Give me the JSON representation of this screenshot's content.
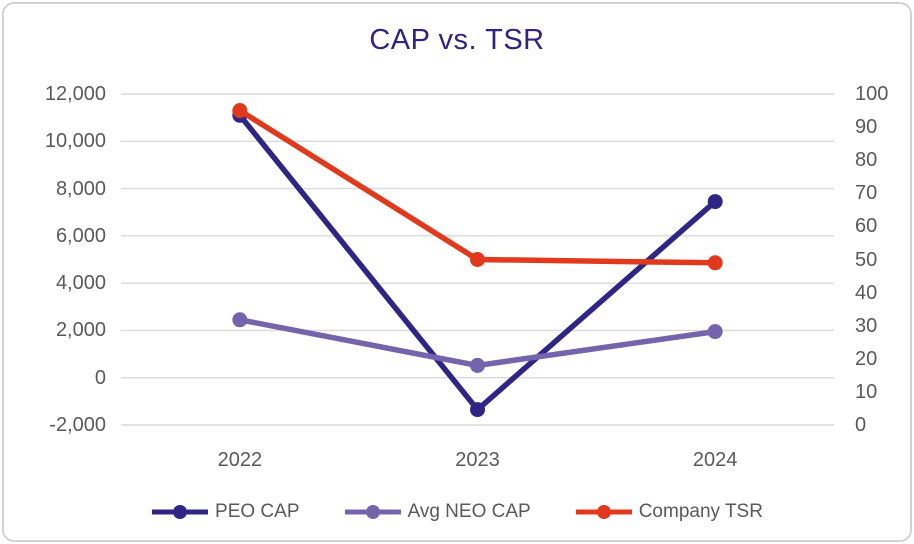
{
  "chart_data": {
    "type": "line",
    "title": "CAP vs. TSR",
    "categories": [
      "2022",
      "2023",
      "2024"
    ],
    "series": [
      {
        "name": "PEO CAP",
        "axis": "left",
        "color": "#2F2585",
        "values": [
          11100,
          -1350,
          7450
        ]
      },
      {
        "name": "Avg NEO CAP",
        "axis": "left",
        "color": "#7464AC",
        "values": [
          2450,
          520,
          1950
        ]
      },
      {
        "name": "Company TSR",
        "axis": "right",
        "color": "#E0391B",
        "values": [
          95,
          50,
          49
        ]
      }
    ],
    "left_axis": {
      "min": -2000,
      "max": 12000,
      "tick_labels": [
        "12,000",
        "10,000",
        "8,000",
        "6,000",
        "4,000",
        "2,000",
        "0",
        "-2,000"
      ]
    },
    "right_axis": {
      "min": 0,
      "max": 100,
      "tick_labels": [
        "100",
        "90",
        "80",
        "70",
        "60",
        "50",
        "40",
        "30",
        "20",
        "10",
        "0"
      ]
    },
    "legend": {
      "position": "bottom"
    },
    "grid": true,
    "colors": {
      "title": "#2E2483",
      "axis_text": "#595959",
      "gridline": "#D9D9D9",
      "border": "#D3D1D1",
      "background": "#FFFFFF"
    }
  }
}
